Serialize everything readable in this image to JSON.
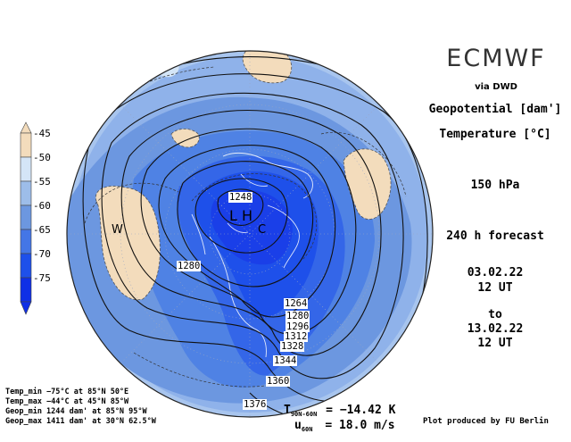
{
  "header": {
    "title": "ECMWF",
    "source": "via DWD"
  },
  "fields": {
    "line1": "Geopotential [dam']",
    "line2": "Temperature [°C]"
  },
  "level": "150 hPa",
  "forecast": "240 h forecast",
  "init_date": "03.02.22",
  "init_time": "12 UT",
  "to_label": "to",
  "valid_date": "13.02.22",
  "valid_time": "12 UT",
  "colorbar": {
    "labels": [
      "-45",
      "-50",
      "-55",
      "-60",
      "-65",
      "-70",
      "-75"
    ],
    "colors": [
      "#f3dcbc",
      "#d4e5f7",
      "#9dbde9",
      "#6c97e0",
      "#4476e6",
      "#1e50ea",
      "#0f2fe6"
    ]
  },
  "stats": {
    "temp_min": "Temp_min −75°C at 85°N 50°E",
    "temp_max": "Temp_max −44°C at 45°N 85°W",
    "geop_min": "Geop_min 1244 dam' at 85°N 95°W",
    "geop_max": "Geop_max 1411 dam' at 30°N 62.5°W"
  },
  "indices": {
    "t_label": "T",
    "t_sub": "90N-60N",
    "t_value": "= −14.42 K",
    "u_label": "u",
    "u_sub": "60N",
    "u_value": "= 18.0 m/s"
  },
  "credit": "Plot produced by FU Berlin",
  "contour_labels": [
    "1248",
    "1280",
    "1264",
    "1280",
    "1296",
    "1312",
    "1328",
    "1344",
    "1360",
    "1376"
  ],
  "map_markers": {
    "low": "L",
    "high": "H",
    "warm": "W",
    "cold": "C"
  }
}
